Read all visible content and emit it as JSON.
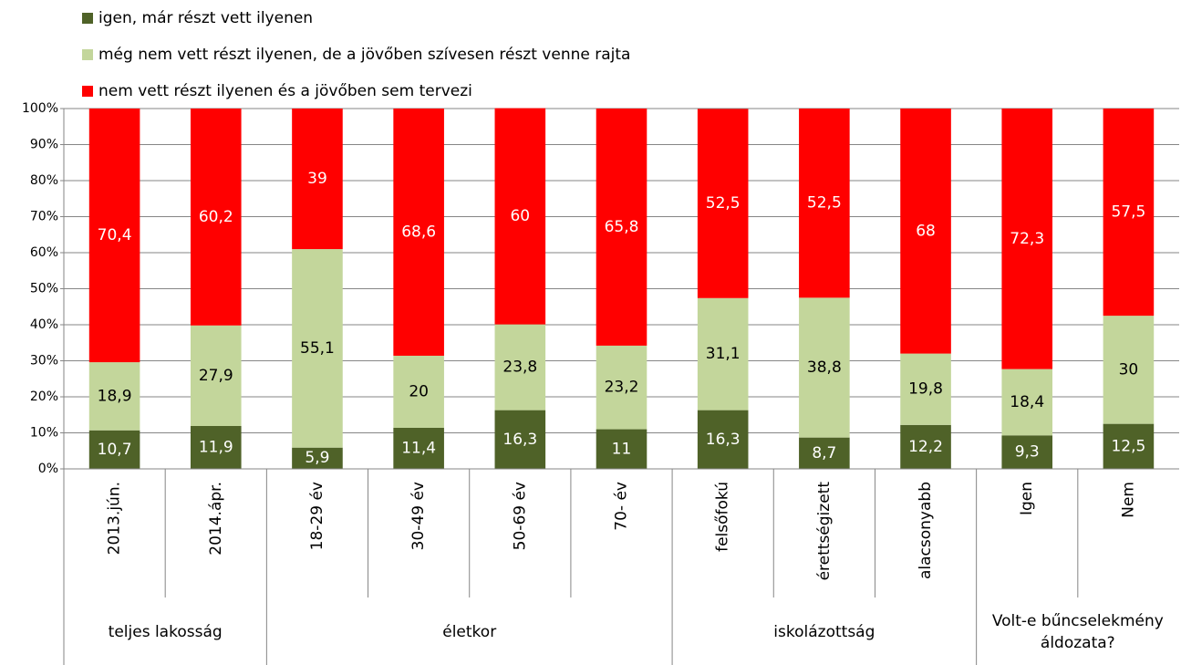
{
  "chart_data": {
    "type": "stacked_bar",
    "categories": [
      "2013.jún.",
      "2014.ápr.",
      "18-29 év",
      "30-49 év",
      "50-69 év",
      "70- év",
      "felsőfokú",
      "érettségizett",
      "alacsonyabb",
      "Igen",
      "Nem"
    ],
    "groups": [
      {
        "label": "teljes lakosság",
        "size": 2
      },
      {
        "label": "életkor",
        "size": 4
      },
      {
        "label": "iskolázottság",
        "size": 3
      },
      {
        "label": "Volt-e bűncselekmény áldozata?",
        "size": 2
      }
    ],
    "series": [
      {
        "name": "igen, már részt vett ilyenen",
        "color": "#4f6228",
        "label_color": "#ffffff",
        "values": [
          10.7,
          11.9,
          5.9,
          11.4,
          16.3,
          11,
          16.3,
          8.7,
          12.2,
          9.3,
          12.5
        ],
        "value_labels": [
          "10,7",
          "11,9",
          "5,9",
          "11,4",
          "16,3",
          "11",
          "16,3",
          "8,7",
          "12,2",
          "9,3",
          "12,5"
        ]
      },
      {
        "name": "még nem vett részt ilyenen, de a jövőben szívesen részt venne rajta",
        "color": "#c3d69b",
        "label_color": "#000000",
        "values": [
          18.9,
          27.9,
          55.1,
          20,
          23.8,
          23.2,
          31.1,
          38.8,
          19.8,
          18.4,
          30
        ],
        "value_labels": [
          "18,9",
          "27,9",
          "55,1",
          "20",
          "23,8",
          "23,2",
          "31,1",
          "38,8",
          "19,8",
          "18,4",
          "30"
        ]
      },
      {
        "name": "nem vett részt ilyenen és a jövőben sem tervezi",
        "color": "#ff0000",
        "label_color": "#ffffff",
        "values": [
          70.4,
          60.2,
          39,
          68.6,
          60,
          65.8,
          52.5,
          52.5,
          68,
          72.3,
          57.5
        ],
        "value_labels": [
          "70,4",
          "60,2",
          "39",
          "68,6",
          "60",
          "65,8",
          "52,5",
          "52,5",
          "68",
          "72,3",
          "57,5"
        ]
      }
    ],
    "ylim": [
      0,
      100
    ],
    "yticks": [
      {
        "value": 0,
        "label": "0%"
      },
      {
        "value": 10,
        "label": "10%"
      },
      {
        "value": 20,
        "label": "20%"
      },
      {
        "value": 30,
        "label": "30%"
      },
      {
        "value": 40,
        "label": "40%"
      },
      {
        "value": 50,
        "label": "50%"
      },
      {
        "value": 60,
        "label": "60%"
      },
      {
        "value": 70,
        "label": "70%"
      },
      {
        "value": 80,
        "label": "80%"
      },
      {
        "value": 90,
        "label": "90%"
      },
      {
        "value": 100,
        "label": "100%"
      }
    ],
    "grid": true
  }
}
